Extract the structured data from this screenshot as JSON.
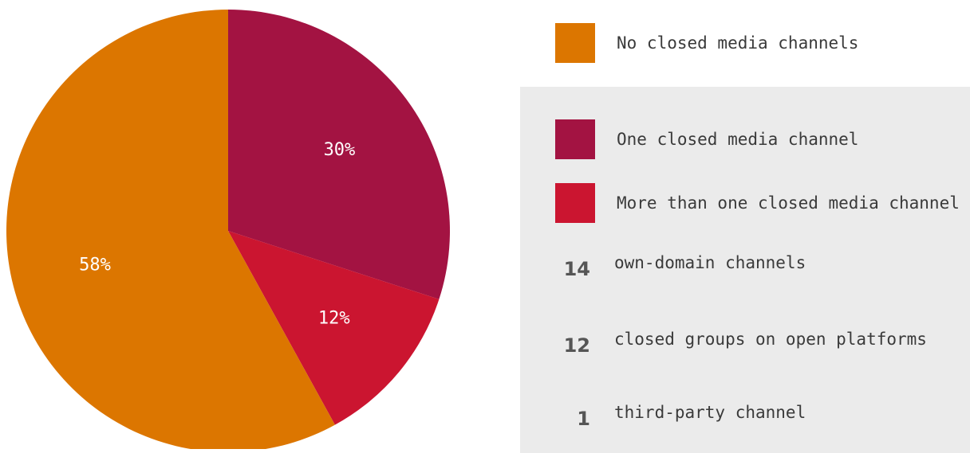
{
  "chart_data": {
    "type": "pie",
    "slices": [
      {
        "label": "One closed media channel",
        "value": 30,
        "display": "30%",
        "color": "#a31342"
      },
      {
        "label": "More than one closed media channel",
        "value": 12,
        "display": "12%",
        "color": "#cb1530"
      },
      {
        "label": "No closed media channels",
        "value": 58,
        "display": "58%",
        "color": "#dc7600"
      }
    ],
    "start_angle": "12 o'clock",
    "direction": "clockwise"
  },
  "legend": {
    "items": [
      {
        "label": "No closed media channels",
        "color": "#dc7600"
      },
      {
        "label": "One closed media channel",
        "color": "#a31342"
      },
      {
        "label": "More than one closed media channel",
        "color": "#cb1530"
      }
    ]
  },
  "stats": [
    {
      "number": "14",
      "label": "own-domain channels"
    },
    {
      "number": "12",
      "label": "closed groups on open platforms"
    },
    {
      "number": "1",
      "label": "third-party channel"
    }
  ],
  "colors": {
    "panel_background": "#ebebeb",
    "slice_text": "#ffffff",
    "body_text": "#3a3a3a"
  }
}
